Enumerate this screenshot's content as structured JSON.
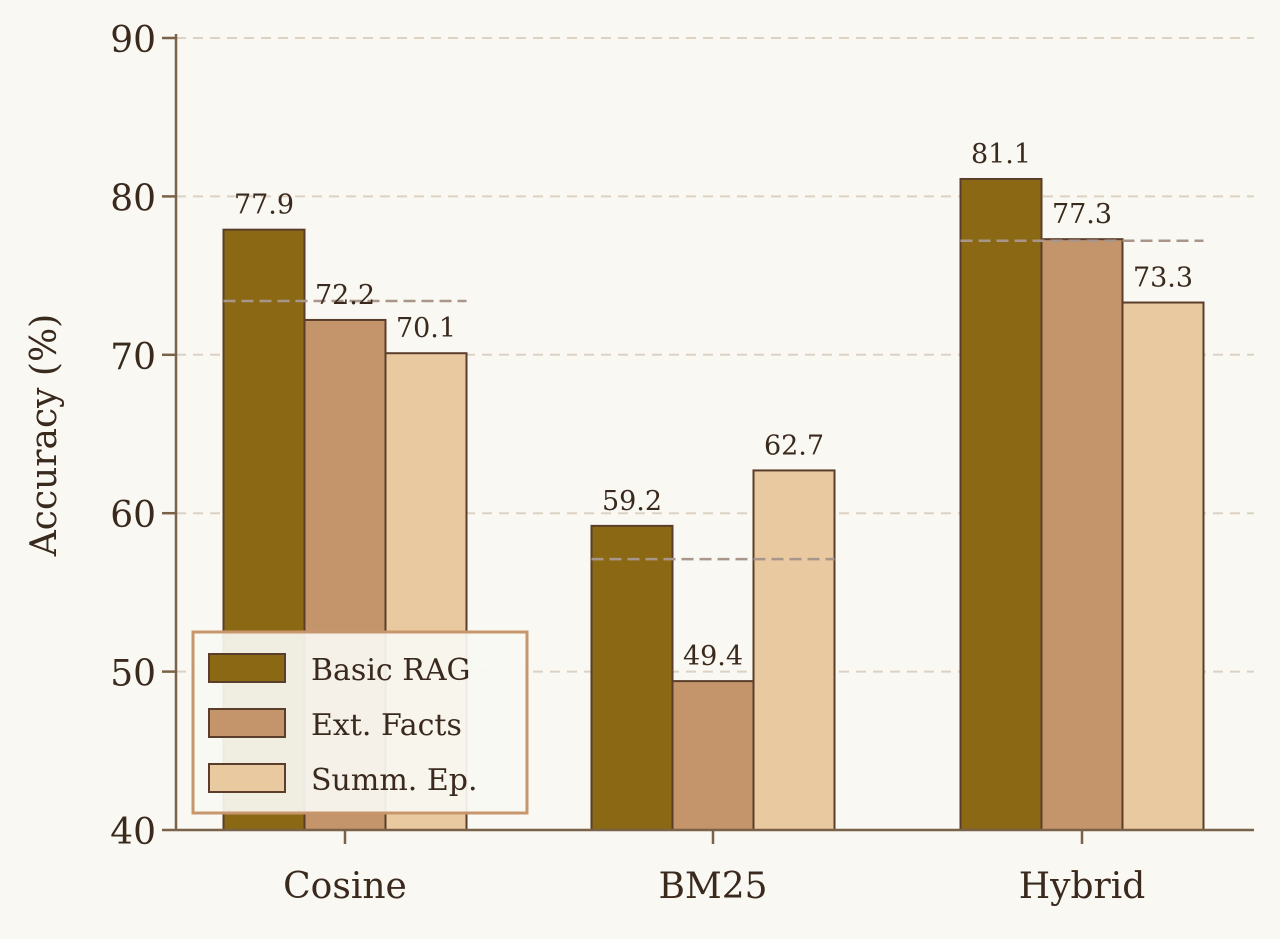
{
  "chart_data": {
    "type": "bar",
    "title": "",
    "xlabel": "",
    "ylabel": "Accuracy (%)",
    "ylim": [
      40,
      90
    ],
    "yticks": [
      40,
      50,
      60,
      70,
      80,
      90
    ],
    "grid": true,
    "legend_position": "bottom-left",
    "categories": [
      "Cosine",
      "BM25",
      "Hybrid"
    ],
    "series": [
      {
        "name": "Basic RAG",
        "color": "#8b6914",
        "values": [
          77.9,
          59.2,
          81.1
        ]
      },
      {
        "name": "Ext. Facts",
        "color": "#c4946a",
        "values": [
          72.2,
          49.4,
          77.3
        ]
      },
      {
        "name": "Summ. Ep.",
        "color": "#e8c9a0",
        "values": [
          70.1,
          62.7,
          73.3
        ]
      }
    ],
    "category_means": [
      73.4,
      57.1,
      77.2
    ],
    "data_labels": [
      [
        "77.9",
        "72.2",
        "70.1"
      ],
      [
        "59.2",
        "49.4",
        "62.7"
      ],
      [
        "81.1",
        "77.3",
        "73.3"
      ]
    ]
  },
  "colors": {
    "background": "#f9f8f3",
    "axis": "#7a6248",
    "grid": "#dcd2c4",
    "text": "#3a2a1e",
    "bar_edge": "#5a3e2b",
    "mean_line": "#a8968a",
    "legend_border": "#c8966c"
  }
}
